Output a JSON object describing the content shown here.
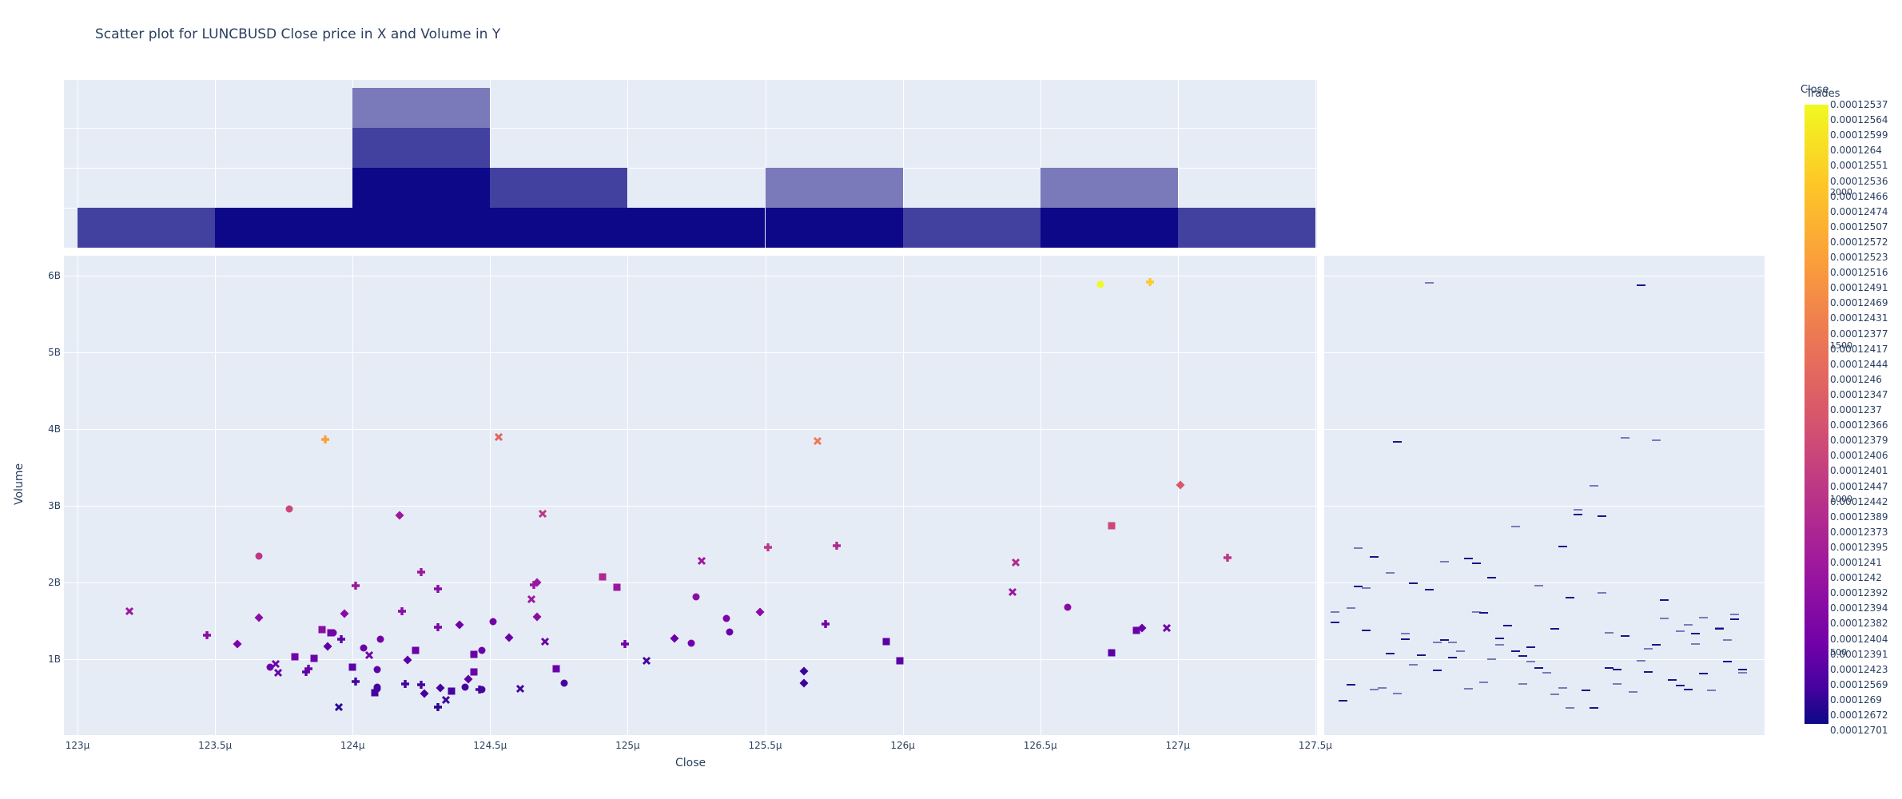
{
  "title": "Scatter plot for LUNCBUSD Close price in X and Volume in Y",
  "chart_data": {
    "type": "scatter",
    "title": "Scatter plot for LUNCBUSD Close price in X and Volume in Y",
    "xlabel": "Close",
    "ylabel": "Volume",
    "x_ticks": [
      "123μ",
      "123.5μ",
      "124μ",
      "124.5μ",
      "125μ",
      "125.5μ",
      "126μ",
      "126.5μ",
      "127μ",
      "127.5μ"
    ],
    "y_ticks": [
      "1B",
      "2B",
      "3B",
      "4B",
      "5B",
      "6B"
    ],
    "xlim": [
      122.95,
      127.5
    ],
    "ylim": [
      0,
      6.2
    ],
    "x_unit": "μ (1e-6)",
    "y_unit": "B (1e9)",
    "grid": true,
    "color_legend_title": "Close",
    "colorbar_title": "Trades",
    "colorbar_ticks": [
      "500",
      "1000",
      "1500",
      "2000"
    ],
    "legend_entries": [
      "0.00012537",
      "0.00012564",
      "0.00012599",
      "0.0001264",
      "0.00012551",
      "0.00012536",
      "0.00012466",
      "0.00012474",
      "0.00012507",
      "0.00012572",
      "0.00012523",
      "0.00012516",
      "0.00012491",
      "0.00012469",
      "0.00012431",
      "0.00012377",
      "0.00012417",
      "0.00012444",
      "0.0001246",
      "0.00012347",
      "0.0001237",
      "0.00012366",
      "0.00012379",
      "0.00012406",
      "0.00012401",
      "0.00012447",
      "0.00012442",
      "0.00012389",
      "0.00012373",
      "0.00012395",
      "0.0001241",
      "0.0001242",
      "0.00012392",
      "0.00012394",
      "0.00012382",
      "0.00012404",
      "0.00012391",
      "0.00012423",
      "0.00012569",
      "0.0001269",
      "0.00012672",
      "0.00012701"
    ],
    "points": [
      {
        "x": 123.19,
        "y": 1.62,
        "s": "x",
        "c": "#9c179e"
      },
      {
        "x": 123.47,
        "y": 1.31,
        "s": "cross",
        "c": "#8a0ca5"
      },
      {
        "x": 123.58,
        "y": 1.2,
        "s": "diamond",
        "c": "#7e03a8"
      },
      {
        "x": 123.66,
        "y": 2.34,
        "s": "circle",
        "c": "#bd3786"
      },
      {
        "x": 123.66,
        "y": 1.54,
        "s": "diamond",
        "c": "#8a0ca5"
      },
      {
        "x": 123.7,
        "y": 0.9,
        "s": "circle",
        "c": "#7201a8"
      },
      {
        "x": 123.72,
        "y": 0.94,
        "s": "x",
        "c": "#7201a8"
      },
      {
        "x": 123.73,
        "y": 0.82,
        "s": "x",
        "c": "#6a00a8"
      },
      {
        "x": 123.77,
        "y": 2.96,
        "s": "circle",
        "c": "#cc4778"
      },
      {
        "x": 123.79,
        "y": 1.03,
        "s": "square",
        "c": "#7201a8"
      },
      {
        "x": 123.83,
        "y": 0.83,
        "s": "cross",
        "c": "#5c01a6"
      },
      {
        "x": 123.84,
        "y": 0.87,
        "s": "cross",
        "c": "#6a00a8"
      },
      {
        "x": 123.86,
        "y": 1.01,
        "s": "square",
        "c": "#6a00a8"
      },
      {
        "x": 123.89,
        "y": 1.39,
        "s": "square",
        "c": "#8a0ca5"
      },
      {
        "x": 123.9,
        "y": 3.86,
        "s": "cross",
        "c": "#fb9f3a"
      },
      {
        "x": 123.91,
        "y": 1.17,
        "s": "diamond",
        "c": "#5c01a6"
      },
      {
        "x": 123.92,
        "y": 1.34,
        "s": "square",
        "c": "#7201a8"
      },
      {
        "x": 123.93,
        "y": 1.34,
        "s": "circle",
        "c": "#7201a8"
      },
      {
        "x": 123.95,
        "y": 0.37,
        "s": "x",
        "c": "#2c0594"
      },
      {
        "x": 123.96,
        "y": 1.26,
        "s": "cross",
        "c": "#5c01a6"
      },
      {
        "x": 123.97,
        "y": 1.59,
        "s": "diamond",
        "c": "#8a0ca5"
      },
      {
        "x": 124.0,
        "y": 0.9,
        "s": "square",
        "c": "#5c01a6"
      },
      {
        "x": 124.01,
        "y": 0.71,
        "s": "cross",
        "c": "#46039f"
      },
      {
        "x": 124.01,
        "y": 1.96,
        "s": "cross",
        "c": "#9c179e"
      },
      {
        "x": 124.04,
        "y": 1.15,
        "s": "circle",
        "c": "#6a00a8"
      },
      {
        "x": 124.06,
        "y": 1.05,
        "s": "x",
        "c": "#7201a8"
      },
      {
        "x": 124.08,
        "y": 0.56,
        "s": "square",
        "c": "#46039f"
      },
      {
        "x": 124.09,
        "y": 0.61,
        "s": "circle",
        "c": "#46039f"
      },
      {
        "x": 124.09,
        "y": 0.64,
        "s": "circle",
        "c": "#46039f"
      },
      {
        "x": 124.09,
        "y": 0.86,
        "s": "circle",
        "c": "#5c01a6"
      },
      {
        "x": 124.1,
        "y": 1.26,
        "s": "circle",
        "c": "#7201a8"
      },
      {
        "x": 124.17,
        "y": 2.87,
        "s": "diamond",
        "c": "#9c179e"
      },
      {
        "x": 124.18,
        "y": 1.63,
        "s": "cross",
        "c": "#8a0ca5"
      },
      {
        "x": 124.19,
        "y": 0.68,
        "s": "cross",
        "c": "#46039f"
      },
      {
        "x": 124.2,
        "y": 0.99,
        "s": "diamond",
        "c": "#5c01a6"
      },
      {
        "x": 124.23,
        "y": 1.11,
        "s": "square",
        "c": "#6a00a8"
      },
      {
        "x": 124.25,
        "y": 2.14,
        "s": "cross",
        "c": "#9c179e"
      },
      {
        "x": 124.25,
        "y": 0.67,
        "s": "cross",
        "c": "#46039f"
      },
      {
        "x": 124.26,
        "y": 0.55,
        "s": "diamond",
        "c": "#46039f"
      },
      {
        "x": 124.31,
        "y": 1.92,
        "s": "cross",
        "c": "#8a0ca5"
      },
      {
        "x": 124.31,
        "y": 1.42,
        "s": "cross",
        "c": "#7e03a8"
      },
      {
        "x": 124.31,
        "y": 0.37,
        "s": "cross",
        "c": "#2c0594"
      },
      {
        "x": 124.32,
        "y": 0.63,
        "s": "diamond",
        "c": "#46039f"
      },
      {
        "x": 124.34,
        "y": 0.47,
        "s": "x",
        "c": "#3a049a"
      },
      {
        "x": 124.36,
        "y": 0.58,
        "s": "square",
        "c": "#46039f"
      },
      {
        "x": 124.39,
        "y": 1.45,
        "s": "diamond",
        "c": "#7201a8"
      },
      {
        "x": 124.41,
        "y": 0.64,
        "s": "circle",
        "c": "#46039f"
      },
      {
        "x": 124.42,
        "y": 0.74,
        "s": "diamond",
        "c": "#5c01a6"
      },
      {
        "x": 124.44,
        "y": 0.83,
        "s": "square",
        "c": "#6a00a8"
      },
      {
        "x": 124.44,
        "y": 1.06,
        "s": "square",
        "c": "#6a00a8"
      },
      {
        "x": 124.46,
        "y": 0.6,
        "s": "cross",
        "c": "#46039f"
      },
      {
        "x": 124.47,
        "y": 0.6,
        "s": "circle",
        "c": "#46039f"
      },
      {
        "x": 124.47,
        "y": 1.11,
        "s": "circle",
        "c": "#6a00a8"
      },
      {
        "x": 124.51,
        "y": 1.49,
        "s": "circle",
        "c": "#7201a8"
      },
      {
        "x": 124.53,
        "y": 3.9,
        "s": "x",
        "c": "#e16462"
      },
      {
        "x": 124.57,
        "y": 1.28,
        "s": "diamond",
        "c": "#6a00a8"
      },
      {
        "x": 124.61,
        "y": 0.61,
        "s": "x",
        "c": "#46039f"
      },
      {
        "x": 124.65,
        "y": 1.78,
        "s": "x",
        "c": "#9c179e"
      },
      {
        "x": 124.66,
        "y": 1.97,
        "s": "cross",
        "c": "#9c179e"
      },
      {
        "x": 124.67,
        "y": 2.0,
        "s": "diamond",
        "c": "#9c179e"
      },
      {
        "x": 124.67,
        "y": 1.55,
        "s": "diamond",
        "c": "#8a0ca5"
      },
      {
        "x": 124.69,
        "y": 2.9,
        "s": "x",
        "c": "#bd3786"
      },
      {
        "x": 124.7,
        "y": 1.23,
        "s": "x",
        "c": "#6a00a8"
      },
      {
        "x": 124.74,
        "y": 0.88,
        "s": "square",
        "c": "#6a00a8"
      },
      {
        "x": 124.77,
        "y": 0.69,
        "s": "circle",
        "c": "#46039f"
      },
      {
        "x": 124.91,
        "y": 2.07,
        "s": "square",
        "c": "#b02991"
      },
      {
        "x": 124.96,
        "y": 1.94,
        "s": "square",
        "c": "#9c179e"
      },
      {
        "x": 124.99,
        "y": 1.2,
        "s": "cross",
        "c": "#7201a8"
      },
      {
        "x": 125.07,
        "y": 0.98,
        "s": "x",
        "c": "#46039f"
      },
      {
        "x": 125.17,
        "y": 1.27,
        "s": "diamond",
        "c": "#6a00a8"
      },
      {
        "x": 125.23,
        "y": 1.21,
        "s": "circle",
        "c": "#7201a8"
      },
      {
        "x": 125.25,
        "y": 1.81,
        "s": "circle",
        "c": "#8a0ca5"
      },
      {
        "x": 125.27,
        "y": 2.28,
        "s": "x",
        "c": "#9c179e"
      },
      {
        "x": 125.36,
        "y": 1.53,
        "s": "circle",
        "c": "#7e03a8"
      },
      {
        "x": 125.37,
        "y": 1.35,
        "s": "circle",
        "c": "#6a00a8"
      },
      {
        "x": 125.48,
        "y": 1.61,
        "s": "diamond",
        "c": "#8a0ca5"
      },
      {
        "x": 125.51,
        "y": 2.46,
        "s": "cross",
        "c": "#bd3786"
      },
      {
        "x": 125.64,
        "y": 0.84,
        "s": "diamond",
        "c": "#3a049a"
      },
      {
        "x": 125.64,
        "y": 0.69,
        "s": "diamond",
        "c": "#3a049a"
      },
      {
        "x": 125.69,
        "y": 3.84,
        "s": "x",
        "c": "#ed7953"
      },
      {
        "x": 125.72,
        "y": 1.46,
        "s": "cross",
        "c": "#7201a8"
      },
      {
        "x": 125.76,
        "y": 2.48,
        "s": "cross",
        "c": "#b02991"
      },
      {
        "x": 125.94,
        "y": 1.23,
        "s": "square",
        "c": "#5c01a6"
      },
      {
        "x": 125.99,
        "y": 0.98,
        "s": "square",
        "c": "#5c01a6"
      },
      {
        "x": 126.4,
        "y": 1.87,
        "s": "x",
        "c": "#9c179e"
      },
      {
        "x": 126.41,
        "y": 2.26,
        "s": "x",
        "c": "#b02991"
      },
      {
        "x": 126.6,
        "y": 1.68,
        "s": "circle",
        "c": "#8a0ca5"
      },
      {
        "x": 126.72,
        "y": 5.89,
        "s": "circle",
        "c": "#f0f921"
      },
      {
        "x": 126.76,
        "y": 2.74,
        "s": "square",
        "c": "#cc4778"
      },
      {
        "x": 126.76,
        "y": 1.08,
        "s": "square",
        "c": "#5c01a6"
      },
      {
        "x": 126.85,
        "y": 1.37,
        "s": "square",
        "c": "#6a00a8"
      },
      {
        "x": 126.87,
        "y": 1.41,
        "s": "diamond",
        "c": "#6a00a8"
      },
      {
        "x": 126.9,
        "y": 5.92,
        "s": "cross",
        "c": "#fdca26"
      },
      {
        "x": 126.96,
        "y": 1.41,
        "s": "x",
        "c": "#6a00a8"
      },
      {
        "x": 127.01,
        "y": 3.27,
        "s": "diamond",
        "c": "#d8576b"
      },
      {
        "x": 127.18,
        "y": 2.32,
        "s": "cross",
        "c": "#bd3786"
      }
    ],
    "top_histogram": {
      "bins": [
        "123-123.5μ",
        "123.5-124μ",
        "124-124.5μ",
        "124.5-125μ",
        "125-125.5μ",
        "125.5-126μ",
        "126-126.5μ",
        "126.5-127μ",
        "127-127.5μ"
      ],
      "rows_from_bottom": [
        [
          "mid",
          "dark",
          "dark",
          "dark",
          "dark",
          "dark",
          "mid",
          "dark",
          "mid"
        ],
        [
          "none",
          "none",
          "dark",
          "mid",
          "none",
          "light",
          "none",
          "light",
          "none"
        ],
        [
          "none",
          "none",
          "mid",
          "none",
          "none",
          "none",
          "none",
          "none",
          "none"
        ],
        [
          "none",
          "none",
          "light",
          "none",
          "none",
          "none",
          "none",
          "none",
          "none"
        ]
      ],
      "colors": {
        "dark": "#0d0887",
        "mid": "#4241a0",
        "light": "#7a7abb"
      }
    },
    "right_marginal": "rug/strip of volume values per trace (short horizontal dashes)"
  }
}
